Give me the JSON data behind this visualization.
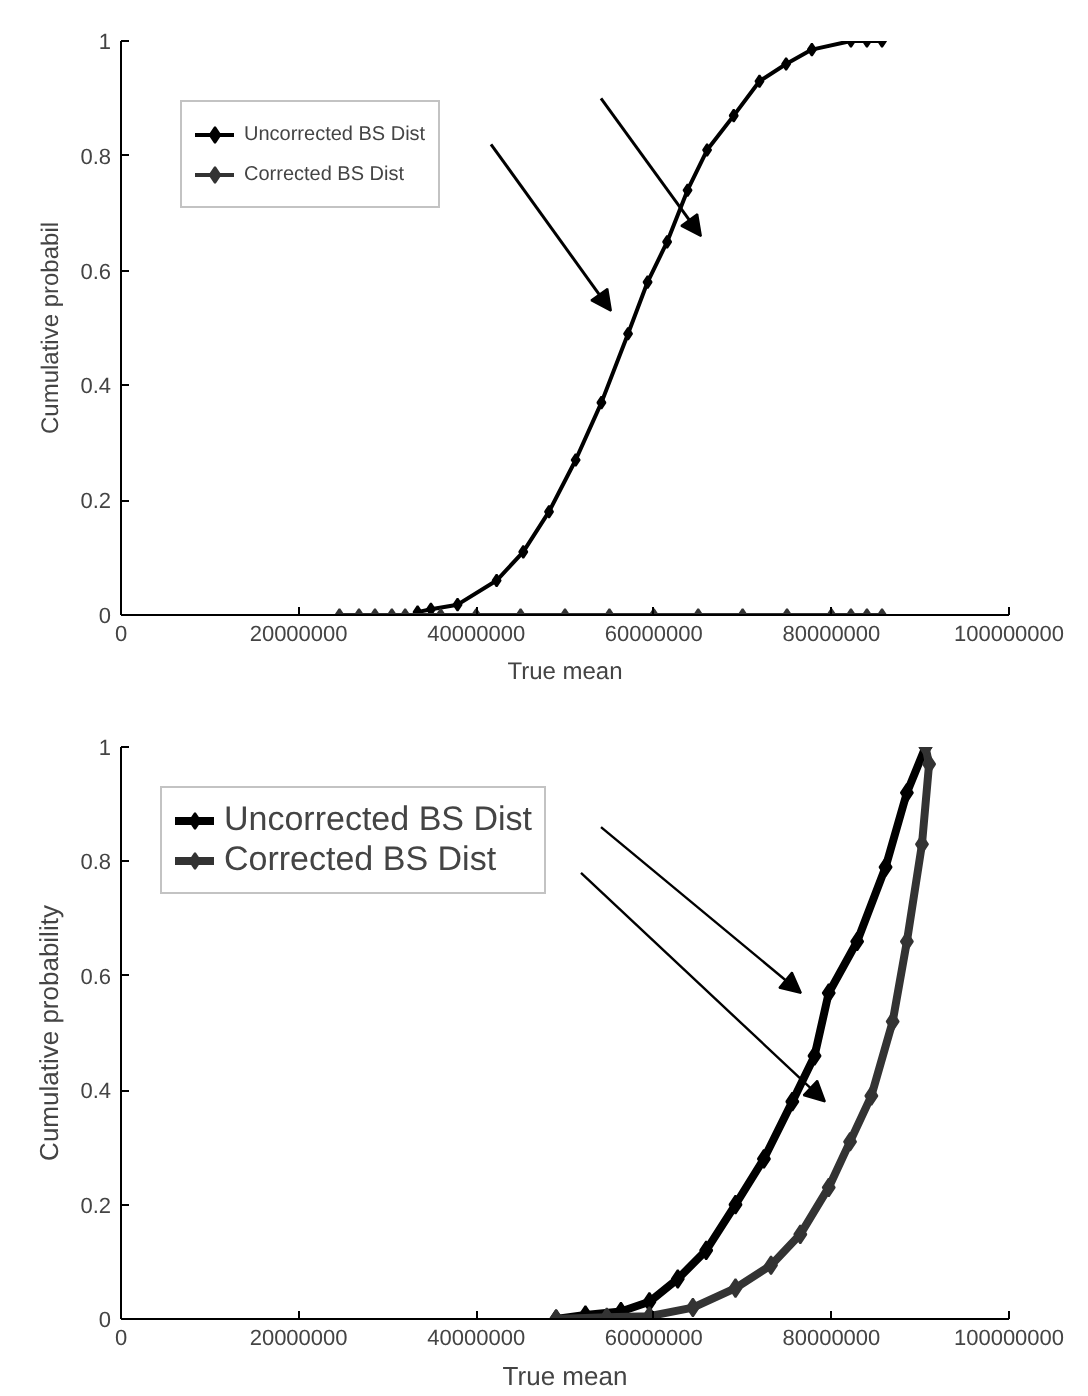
{
  "chart_data": [
    {
      "type": "line",
      "xlabel": "True mean",
      "ylabel": "Cumulative probabil",
      "marker": "diamond",
      "legend": "top left",
      "grid": false,
      "xlim": [
        0,
        100000000
      ],
      "xticks": [
        0,
        20000000,
        40000000,
        60000000,
        80000000,
        100000000
      ],
      "ylim": [
        0,
        1
      ],
      "yticks": [
        0,
        0.2,
        0.4,
        0.6,
        0.8,
        1
      ],
      "series": [
        {
          "name": "Uncorrected BS Dist",
          "color": "#000000",
          "x": [
            33400000,
            34900000,
            37900000,
            42300000,
            45300000,
            48200000,
            51200000,
            54100000,
            57100000,
            59300000,
            61500000,
            63800000,
            66000000,
            69000000,
            71900000,
            74900000,
            77800000,
            82200000,
            84000000,
            85700000
          ],
          "values": [
            0.005,
            0.01,
            0.018,
            0.06,
            0.11,
            0.18,
            0.27,
            0.37,
            0.49,
            0.58,
            0.65,
            0.74,
            0.81,
            0.87,
            0.93,
            0.96,
            0.985,
            1,
            1,
            1
          ]
        },
        {
          "name": "Corrected BS Dist",
          "color": "#333333",
          "x": [
            24600000,
            26800000,
            28600000,
            30500000,
            32000000,
            36000000,
            40000000,
            45000000,
            50000000,
            55000000,
            60000000,
            65000000,
            70000000,
            75000000,
            80000000,
            82200000,
            84000000,
            85700000
          ],
          "values": [
            0,
            0,
            0,
            0,
            0,
            0,
            0,
            0,
            0,
            0,
            0,
            0,
            0,
            0,
            0,
            0,
            0,
            0
          ]
        }
      ]
    },
    {
      "type": "line",
      "xlabel": "True mean",
      "ylabel": "Cumulative probability",
      "marker": "diamond",
      "legend": "top left",
      "grid": false,
      "xlim": [
        0,
        100000000
      ],
      "xticks": [
        0,
        20000000,
        40000000,
        60000000,
        80000000,
        100000000
      ],
      "ylim": [
        0,
        1
      ],
      "yticks": [
        0,
        0.2,
        0.4,
        0.6,
        0.8,
        1
      ],
      "series": [
        {
          "name": "Uncorrected BS Dist",
          "color": "#000000",
          "x": [
            49000000,
            52300000,
            56300000,
            59500000,
            62700000,
            65900000,
            69200000,
            72400000,
            75600000,
            78100000,
            79700000,
            82900000,
            86100000,
            88500000,
            90600000
          ],
          "values": [
            0,
            0.007,
            0.013,
            0.03,
            0.07,
            0.12,
            0.2,
            0.28,
            0.38,
            0.46,
            0.57,
            0.66,
            0.79,
            0.92,
            1
          ]
        },
        {
          "name": "Corrected BS Dist",
          "color": "#333333",
          "x": [
            49000000,
            54700000,
            59500000,
            64400000,
            69200000,
            73200000,
            76500000,
            79700000,
            82100000,
            84500000,
            86900000,
            88500000,
            90200000,
            91000000,
            90600000
          ],
          "values": [
            0,
            0.003,
            0.005,
            0.02,
            0.054,
            0.094,
            0.148,
            0.23,
            0.31,
            0.39,
            0.52,
            0.66,
            0.83,
            0.97,
            1
          ]
        }
      ]
    }
  ]
}
